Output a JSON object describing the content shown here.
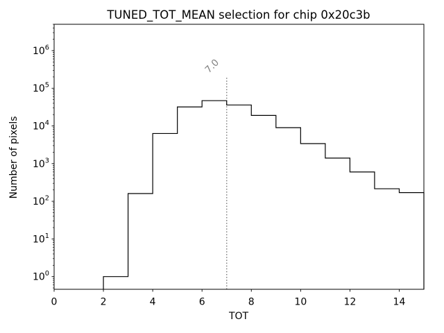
{
  "figure": {
    "title": "TUNED_TOT_MEAN selection for chip 0x20c3b",
    "background": "#ffffff"
  },
  "chart_data": {
    "type": "bar",
    "subtype": "step-histogram",
    "title": "TUNED_TOT_MEAN selection for chip 0x20c3b",
    "xlabel": "TOT",
    "ylabel": "Number of pixels",
    "yscale": "log",
    "grid": false,
    "legend": null,
    "xlim": [
      0,
      15
    ],
    "ylim": [
      0.46,
      5000000
    ],
    "x_ticks": [
      0,
      2,
      4,
      6,
      8,
      10,
      12,
      14
    ],
    "y_tick_exponents": [
      0,
      1,
      2,
      3,
      4,
      5,
      6
    ],
    "bin_edges": [
      2,
      3,
      4,
      5,
      6,
      7,
      8,
      9,
      10,
      11,
      12,
      13,
      14,
      15
    ],
    "counts": [
      1,
      160,
      6300,
      32000,
      47000,
      36000,
      19000,
      9000,
      3400,
      1400,
      600,
      215,
      170
    ],
    "line_color": "#000000",
    "annotation": {
      "label": "7.0",
      "x": 7.0,
      "line_top_value": 200000,
      "color": "#7f7f7f",
      "style": "dotted"
    }
  }
}
